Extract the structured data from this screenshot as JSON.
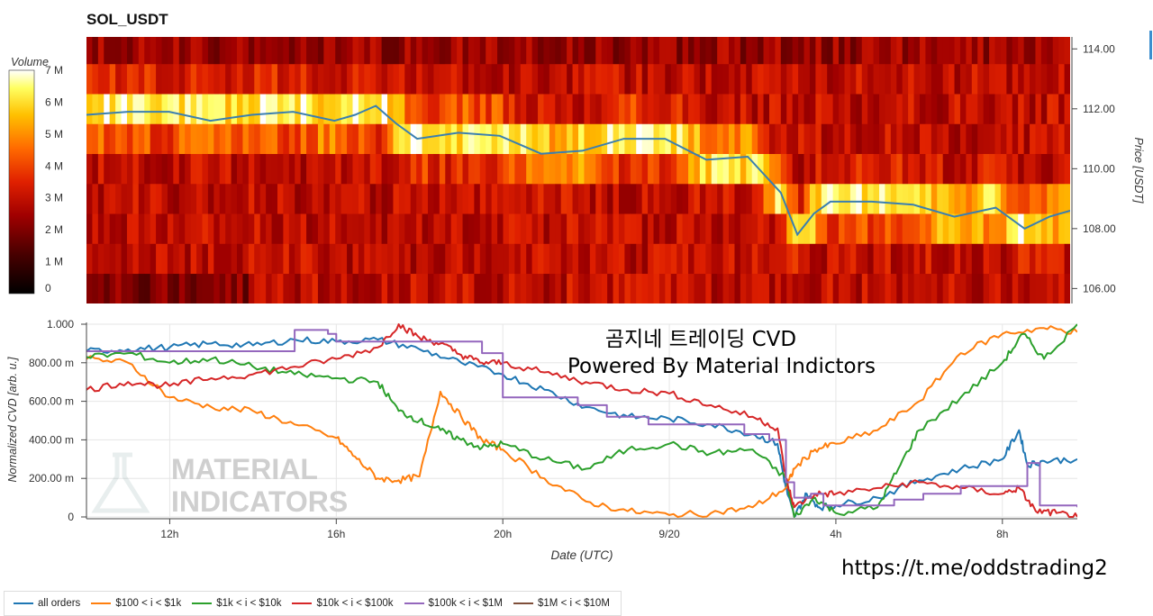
{
  "header": {
    "title": "SOL_USDT"
  },
  "annotation": {
    "line1": "곰지네 트레이딩 CVD",
    "line2": "Powered By Material Indictors"
  },
  "watermark": {
    "line1": "MATERIAL",
    "line2": "INDICATORS"
  },
  "footer": {
    "url": "https://t.me/oddstrading2"
  },
  "chart_data": [
    {
      "type": "heatmap",
      "name": "orderbook-volume",
      "colorbar": {
        "label": "Volume",
        "ticks": [
          "0",
          "1 M",
          "2 M",
          "3 M",
          "4 M",
          "5 M",
          "6 M",
          "7 M"
        ],
        "range": [
          0,
          7
        ],
        "unit": "M"
      },
      "y_axis": {
        "label": "Price [USDT]",
        "ticks": [
          "106.00",
          "108.00",
          "110.00",
          "112.00",
          "114.00"
        ],
        "range": [
          105.5,
          114.4
        ],
        "position": "right"
      },
      "x_range_hours": [
        10,
        33.8
      ],
      "price_bins": [
        106,
        107,
        108,
        109,
        110,
        111,
        112,
        113,
        114
      ],
      "price_series": {
        "name": "price",
        "x_hours": [
          10,
          11,
          12,
          13,
          14,
          15,
          16,
          16.5,
          17,
          17.5,
          18,
          19,
          20,
          21,
          22,
          23,
          24,
          25,
          26,
          26.8,
          27.2,
          27.6,
          28,
          29,
          30,
          31,
          32,
          32.7,
          33.3,
          33.8
        ],
        "y_price": [
          111.8,
          111.9,
          111.9,
          111.6,
          111.8,
          111.9,
          111.6,
          111.8,
          112.1,
          111.5,
          111.0,
          111.2,
          111.1,
          110.5,
          110.6,
          111.0,
          111.0,
          110.3,
          110.4,
          109.2,
          107.8,
          108.5,
          108.9,
          108.9,
          108.8,
          108.4,
          108.7,
          108.0,
          108.4,
          108.6
        ]
      }
    },
    {
      "type": "line",
      "name": "normalized-cvd",
      "ylabel": "Normalized CVD [arb. u.]",
      "xlabel": "Date (UTC)",
      "y_ticks": [
        "0",
        "200.00 m",
        "400.00 m",
        "600.00 m",
        "800.00 m",
        "1.000"
      ],
      "ylim": [
        0,
        1
      ],
      "x_ticks": [
        "12h",
        "16h",
        "20h",
        "9/20",
        "4h",
        "8h"
      ],
      "x_tick_hours": [
        12,
        16,
        20,
        24,
        28,
        32
      ],
      "xlim_hours": [
        10,
        33.8
      ],
      "legend_placement": "bottom-left",
      "series": [
        {
          "name": "all orders",
          "color": "#1f77b4",
          "x": [
            10,
            11,
            12,
            13,
            14,
            15,
            16,
            17,
            18,
            19,
            20,
            21,
            22,
            23,
            24,
            25,
            26,
            26.6,
            26.8,
            27.0,
            27.3,
            27.6,
            28,
            29,
            30,
            31,
            32,
            32.4,
            32.6,
            33,
            33.8
          ],
          "y": [
            0.86,
            0.87,
            0.88,
            0.9,
            0.89,
            0.92,
            0.91,
            0.92,
            0.87,
            0.8,
            0.74,
            0.66,
            0.57,
            0.52,
            0.51,
            0.48,
            0.43,
            0.38,
            0.15,
            0.0,
            0.12,
            0.05,
            0.06,
            0.1,
            0.19,
            0.25,
            0.3,
            0.45,
            0.27,
            0.29,
            0.3
          ]
        },
        {
          "name": "$100 < i < $1k",
          "color": "#ff7f0e",
          "x": [
            10,
            11,
            12,
            13,
            14,
            15,
            16,
            16.5,
            17,
            17.5,
            18,
            18.5,
            19,
            19.5,
            20,
            21,
            22,
            23,
            24,
            25,
            26,
            26.8,
            27,
            27.5,
            28,
            29,
            30,
            31,
            32,
            33,
            33.8
          ],
          "y": [
            0.82,
            0.8,
            0.62,
            0.57,
            0.55,
            0.48,
            0.41,
            0.3,
            0.2,
            0.19,
            0.21,
            0.65,
            0.52,
            0.4,
            0.35,
            0.2,
            0.08,
            0.03,
            0.01,
            0.02,
            0.05,
            0.15,
            0.25,
            0.35,
            0.38,
            0.45,
            0.6,
            0.85,
            0.95,
            0.98,
            0.96
          ]
        },
        {
          "name": "$1k < i < $10k",
          "color": "#2ca02c",
          "x": [
            10,
            11,
            12,
            13,
            14,
            15,
            16,
            17,
            17.5,
            18,
            18.5,
            19,
            19.5,
            20,
            21,
            22,
            23,
            24,
            25,
            26,
            26.8,
            27,
            27.5,
            28,
            29,
            29.5,
            30,
            31,
            32,
            32.5,
            33,
            33.8
          ],
          "y": [
            0.83,
            0.85,
            0.8,
            0.82,
            0.78,
            0.74,
            0.72,
            0.7,
            0.55,
            0.5,
            0.45,
            0.4,
            0.36,
            0.38,
            0.3,
            0.25,
            0.35,
            0.38,
            0.33,
            0.35,
            0.2,
            0.0,
            0.1,
            0.02,
            0.05,
            0.25,
            0.45,
            0.62,
            0.8,
            0.95,
            0.82,
            1.0
          ]
        },
        {
          "name": "$10k < i < $100k",
          "color": "#d62728",
          "x": [
            10,
            11,
            12,
            13,
            14,
            15,
            16,
            17,
            17.5,
            18,
            18.5,
            19,
            19.5,
            20,
            21,
            22,
            23,
            24,
            25,
            26,
            26.6,
            26.8,
            27.0,
            27.5,
            28,
            29,
            30,
            31,
            32,
            32.4,
            32.8,
            33.3,
            33.8
          ],
          "y": [
            0.66,
            0.7,
            0.68,
            0.72,
            0.74,
            0.78,
            0.82,
            0.88,
            1.0,
            0.93,
            0.9,
            0.84,
            0.8,
            0.8,
            0.75,
            0.7,
            0.66,
            0.64,
            0.58,
            0.52,
            0.46,
            0.2,
            0.05,
            0.12,
            0.12,
            0.15,
            0.18,
            0.15,
            0.12,
            0.15,
            0.03,
            0.02,
            0.0
          ]
        },
        {
          "name": "$100k < i < $1M",
          "color": "#9467bd",
          "x": [
            10,
            13.8,
            15,
            15.8,
            16,
            19.5,
            20,
            20.7,
            21.8,
            22.5,
            23.5,
            25.8,
            26.4,
            26.8,
            27.0,
            27.4,
            27.7,
            28.4,
            29.4,
            30.1,
            31.0,
            32.4,
            32.6,
            32.9,
            33.8
          ],
          "y": [
            0.86,
            0.86,
            0.97,
            0.95,
            0.91,
            0.85,
            0.62,
            0.62,
            0.58,
            0.52,
            0.48,
            0.43,
            0.4,
            0.18,
            0.1,
            0.12,
            0.06,
            0.06,
            0.09,
            0.12,
            0.16,
            0.16,
            0.28,
            0.06,
            0.05
          ]
        },
        {
          "name": "$1M < i < $10M",
          "color": "#7f4f3a",
          "x": [],
          "y": []
        }
      ]
    }
  ]
}
